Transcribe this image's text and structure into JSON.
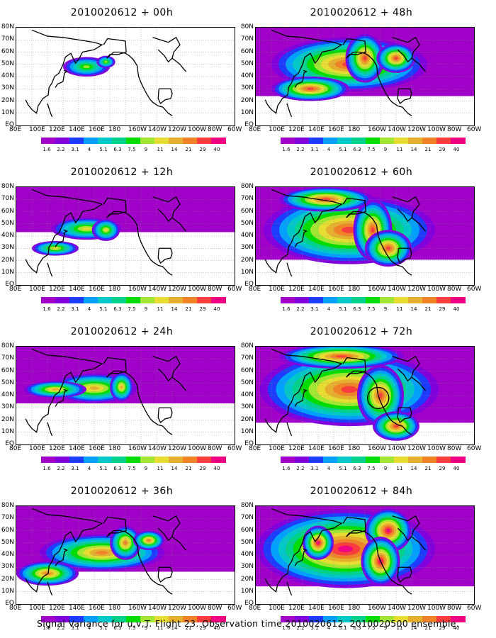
{
  "panels": [
    {
      "title": "2010020612 + 00h",
      "level": 0.15
    },
    {
      "title": "2010020612 + 12h",
      "level": 0.35
    },
    {
      "title": "2010020612 + 24h",
      "level": 0.55
    },
    {
      "title": "2010020612 + 36h",
      "level": 0.7
    },
    {
      "title": "2010020612 + 48h",
      "level": 0.75
    },
    {
      "title": "2010020612 + 60h",
      "level": 0.82
    },
    {
      "title": "2010020612 + 72h",
      "level": 0.88
    },
    {
      "title": "2010020612 + 84h",
      "level": 0.95
    }
  ],
  "lat_labels": [
    "80N",
    "70N",
    "60N",
    "50N",
    "40N",
    "30N",
    "20N",
    "10N",
    "EQ"
  ],
  "lon_labels": [
    "80E",
    "100E",
    "120E",
    "140E",
    "160E",
    "180",
    "160W",
    "140W",
    "120W",
    "100W",
    "80W",
    "60W"
  ],
  "colorbar": {
    "ticks": [
      "1.6",
      "2.2",
      "3.1",
      "4",
      "5.1",
      "6.3",
      "7.5",
      "9",
      "11",
      "14",
      "21",
      "29",
      "40"
    ],
    "colors": [
      "#a000c8",
      "#8200dc",
      "#1e3cff",
      "#00a0ff",
      "#00c8c8",
      "#00d28c",
      "#00dc00",
      "#a0e632",
      "#e6dc32",
      "#e6af2d",
      "#f08228",
      "#fa3c3c",
      "#f00082"
    ]
  },
  "caption": "Signal Variance for u,v,T. Flight 23. Observation time 2010020612. 2010020500 ensemble."
}
